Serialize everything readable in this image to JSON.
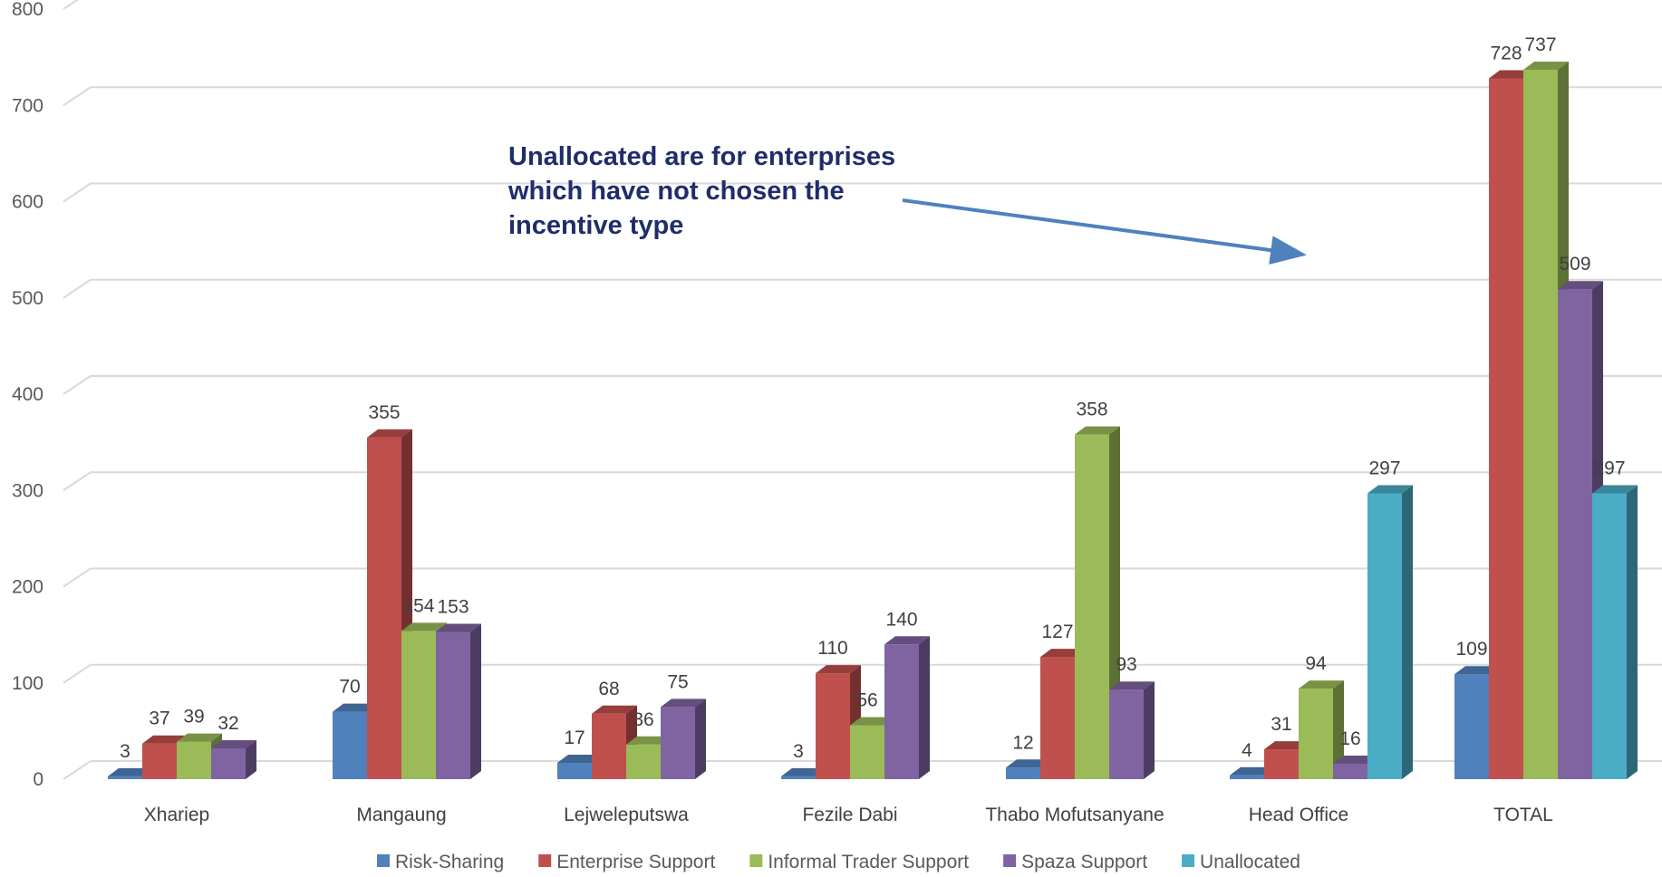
{
  "chart_data": {
    "type": "bar",
    "title": "",
    "xlabel": "",
    "ylabel": "",
    "ylim": [
      0,
      800
    ],
    "yticks": [
      "0",
      "100",
      "200",
      "300",
      "400",
      "500",
      "600",
      "700",
      "800"
    ],
    "grid": true,
    "legend_position": "bottom",
    "categories": [
      "Xhariep",
      "Mangaung",
      "Lejweleputswa",
      "Fezile Dabi",
      "Thabo Mofutsanyane",
      "Head Office",
      "TOTAL"
    ],
    "series": [
      {
        "name": "Risk-Sharing",
        "color": "#4f81bd",
        "values": [
          3,
          70,
          17,
          3,
          12,
          4,
          109
        ]
      },
      {
        "name": "Enterprise Support",
        "color": "#c0504d",
        "values": [
          37,
          355,
          68,
          110,
          127,
          31,
          728
        ]
      },
      {
        "name": "Informal Trader Support",
        "color": "#9bbb59",
        "values": [
          39,
          154,
          36,
          56,
          358,
          94,
          737
        ]
      },
      {
        "name": "Spaza Support",
        "color": "#8064a2",
        "values": [
          32,
          153,
          75,
          140,
          93,
          16,
          509
        ]
      },
      {
        "name": "Unallocated",
        "color": "#4bacc6",
        "values": [
          null,
          null,
          null,
          null,
          null,
          297,
          297
        ]
      }
    ],
    "annotation": {
      "text": "Unallocated are for enterprises which have not chosen the incentive type",
      "color": "#1f2d6b"
    }
  }
}
